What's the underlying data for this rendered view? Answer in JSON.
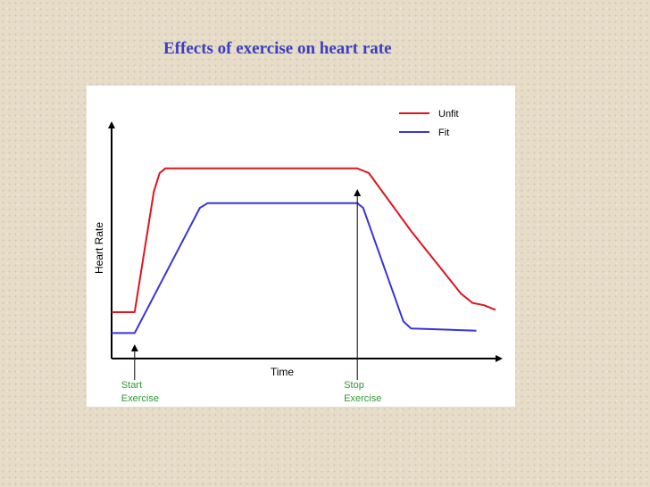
{
  "slide": {
    "title": "Effects of exercise on heart rate"
  },
  "colors": {
    "title": "#3a3fc0",
    "unfit": "#e0141e",
    "fit": "#3a34d8",
    "annotation": "#2e9a2e"
  },
  "chart_data": {
    "type": "line",
    "title": "",
    "xlabel": "Time",
    "ylabel": "Heart Rate",
    "xlim": [
      0,
      100
    ],
    "ylim": [
      0,
      100
    ],
    "grid": false,
    "legend": {
      "placement": "top-right"
    },
    "annotations": [
      {
        "text_lines": [
          "Start",
          "Exercise"
        ],
        "x": 6
      },
      {
        "text_lines": [
          "Stop",
          "Exercise"
        ],
        "x": 64
      }
    ],
    "series": [
      {
        "name": "Unfit",
        "color": "#e0141e",
        "points": [
          [
            0,
            20
          ],
          [
            6,
            20
          ],
          [
            11,
            72
          ],
          [
            12.5,
            80
          ],
          [
            14,
            82
          ],
          [
            64,
            82
          ],
          [
            67,
            80
          ],
          [
            78,
            55
          ],
          [
            91,
            28
          ],
          [
            94,
            24
          ],
          [
            97,
            23
          ],
          [
            100,
            21
          ]
        ]
      },
      {
        "name": "Fit",
        "color": "#3a34d8",
        "points": [
          [
            0,
            11
          ],
          [
            6,
            11
          ],
          [
            23,
            65
          ],
          [
            25,
            67
          ],
          [
            64,
            67
          ],
          [
            65.5,
            65
          ],
          [
            76,
            16
          ],
          [
            78,
            13
          ],
          [
            95,
            12
          ]
        ]
      }
    ]
  }
}
